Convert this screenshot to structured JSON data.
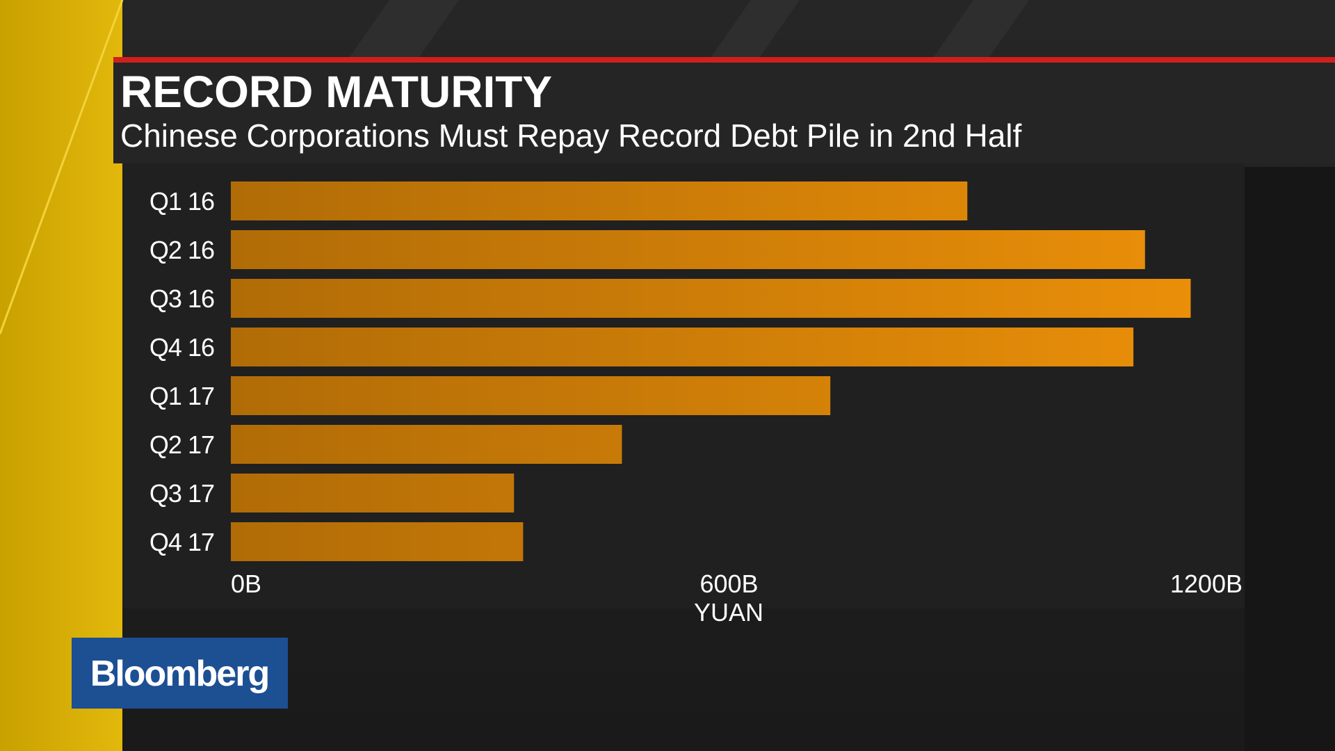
{
  "chart_data": {
    "type": "barh",
    "title": "RECORD MATURITY",
    "subtitle": "Chinese Corporations Must Repay Record Debt Pile in 2nd Half",
    "x_label": "YUAN",
    "categories": [
      "Q1 16",
      "Q2 16",
      "Q3 16",
      "Q4 16",
      "Q1 17",
      "Q2 17",
      "Q3 17",
      "Q4 17"
    ],
    "values": [
      887,
      1101,
      1156,
      1087,
      722,
      471,
      341,
      352
    ],
    "color": "#ec9009",
    "xlim": [
      0,
      1200
    ],
    "xticks": [
      {
        "value": 0,
        "label": "0B"
      },
      {
        "value": 600,
        "label": "600B"
      },
      {
        "value": 1200,
        "label": "1200B"
      }
    ],
    "grid": false
  },
  "brand": "Bloomberg"
}
